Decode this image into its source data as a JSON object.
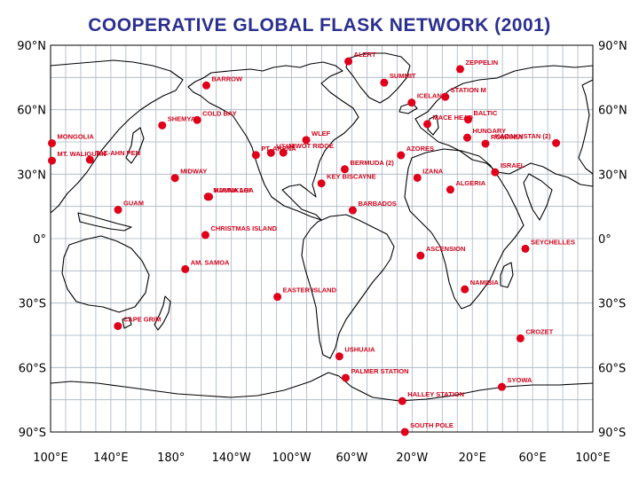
{
  "title": "COOPERATIVE GLOBAL FLASK NETWORK (2001)",
  "lat_ticks": [
    "90°N",
    "60°N",
    "30°N",
    "0°",
    "30°S",
    "60°S",
    "90°S"
  ],
  "lon_ticks": [
    "100°E",
    "140°E",
    "180°",
    "140°W",
    "100°W",
    "60°W",
    "20°W",
    "20°E",
    "60°E",
    "100°E"
  ],
  "colors": {
    "title": "#2b2f8f",
    "site": "#e0001a",
    "grid": "#a8b4c0",
    "coast": "#000000"
  },
  "map": {
    "lon_start": 100,
    "lon_span": 360,
    "lat_range": [
      -90,
      90
    ]
  },
  "sites": [
    {
      "label": "ALERT",
      "lon": -62.3,
      "lat": 82.5
    },
    {
      "label": "ZEPPELIN",
      "lon": 11.9,
      "lat": 78.9
    },
    {
      "label": "BARROW",
      "lon": -156.6,
      "lat": 71.3
    },
    {
      "label": "SUMMIT",
      "lon": -38.5,
      "lat": 72.6
    },
    {
      "label": "STATION M",
      "lon": 2.0,
      "lat": 66.0
    },
    {
      "label": "ICELAND",
      "lon": -20.3,
      "lat": 63.3
    },
    {
      "label": "MACE HEAD",
      "lon": -9.9,
      "lat": 53.3
    },
    {
      "label": "BALTIC",
      "lon": 17.2,
      "lat": 55.4
    },
    {
      "label": "COLD BAY",
      "lon": -162.7,
      "lat": 55.2
    },
    {
      "label": "SHEMYA",
      "lon": 174.1,
      "lat": 52.7
    },
    {
      "label": "HUNGARY",
      "lon": 16.6,
      "lat": 47.0
    },
    {
      "label": "ROMANIA",
      "lon": 28.7,
      "lat": 44.2
    },
    {
      "label": "KAZAKHSTAN (2)",
      "lon": 75.6,
      "lat": 44.5
    },
    {
      "label": "MONGOLIA",
      "lon": 100.9,
      "lat": 44.4
    },
    {
      "label": "WLEF",
      "lon": -90.3,
      "lat": 45.9
    },
    {
      "label": "UTAH",
      "lon": -113.7,
      "lat": 39.9
    },
    {
      "label": "NIWOT RIDGE",
      "lon": -105.5,
      "lat": 40.0
    },
    {
      "label": "PT. ARENA",
      "lon": -123.7,
      "lat": 38.9
    },
    {
      "label": "AZORES",
      "lon": -27.4,
      "lat": 38.8
    },
    {
      "label": "MT. WALIGUAN",
      "lon": 100.9,
      "lat": 36.3
    },
    {
      "label": "TAE-AHN PEN",
      "lon": 126.1,
      "lat": 36.7
    },
    {
      "label": "BERMUDA (2)",
      "lon": -64.7,
      "lat": 32.3
    },
    {
      "label": "IZANA",
      "lon": -16.5,
      "lat": 28.3
    },
    {
      "label": "ISRAEL",
      "lon": 35.1,
      "lat": 30.9
    },
    {
      "label": "MIDWAY",
      "lon": -177.4,
      "lat": 28.2
    },
    {
      "label": "KEY BISCAYNE",
      "lon": -80.2,
      "lat": 25.7
    },
    {
      "label": "ALGERIA",
      "lon": 5.4,
      "lat": 22.8
    },
    {
      "label": "MAUNA LOA",
      "lon": -155.6,
      "lat": 19.5
    },
    {
      "label": "KUMUKAHI",
      "lon": -154.8,
      "lat": 19.5
    },
    {
      "label": "GUAM",
      "lon": 144.8,
      "lat": 13.4
    },
    {
      "label": "BARBADOS",
      "lon": -59.4,
      "lat": 13.2
    },
    {
      "label": "CHRISTMAS ISLAND",
      "lon": -157.2,
      "lat": 1.7
    },
    {
      "label": "SEYCHELLES",
      "lon": 55.2,
      "lat": -4.7
    },
    {
      "label": "ASCENSION",
      "lon": -14.4,
      "lat": -7.9
    },
    {
      "label": "AM. SAMOA",
      "lon": -170.6,
      "lat": -14.2
    },
    {
      "label": "NAMIBIA",
      "lon": 15.0,
      "lat": -23.6
    },
    {
      "label": "EASTER ISLAND",
      "lon": -109.4,
      "lat": -27.1
    },
    {
      "label": "CAPE GRIM",
      "lon": 144.7,
      "lat": -40.7
    },
    {
      "label": "CROZET",
      "lon": 51.9,
      "lat": -46.4
    },
    {
      "label": "USHUAIA",
      "lon": -68.3,
      "lat": -54.8
    },
    {
      "label": "PALMER STATION",
      "lon": -64.1,
      "lat": -64.8
    },
    {
      "label": "SYOWA",
      "lon": 39.6,
      "lat": -69.0
    },
    {
      "label": "HALLEY STATION",
      "lon": -26.5,
      "lat": -75.6
    },
    {
      "label": "SOUTH POLE",
      "lon": -24.8,
      "lat": -89.98
    }
  ]
}
